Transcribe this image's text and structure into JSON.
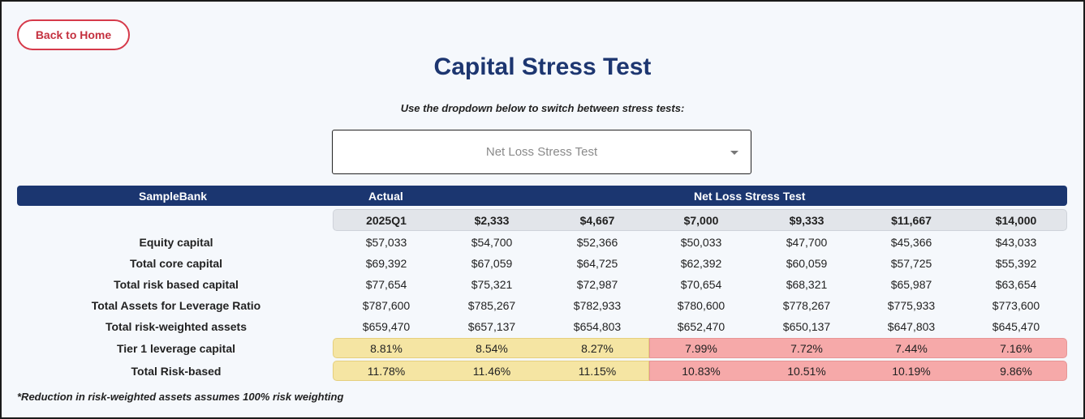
{
  "back_button": "Back to Home",
  "title": "Capital Stress Test",
  "instruction": "Use the dropdown below to switch between stress tests:",
  "dropdown": {
    "selected": "Net Loss Stress Test"
  },
  "table": {
    "bank_header": "SampleBank",
    "actual_header": "Actual",
    "scenario_header": "Net Loss Stress Test",
    "columns": [
      "2025Q1",
      "$2,333",
      "$4,667",
      "$7,000",
      "$9,333",
      "$11,667",
      "$14,000"
    ],
    "rows": [
      {
        "label": "Equity capital",
        "values": [
          "$57,033",
          "$54,700",
          "$52,366",
          "$50,033",
          "$47,700",
          "$45,366",
          "$43,033"
        ]
      },
      {
        "label": "Total core capital",
        "values": [
          "$69,392",
          "$67,059",
          "$64,725",
          "$62,392",
          "$60,059",
          "$57,725",
          "$55,392"
        ]
      },
      {
        "label": "Total risk based capital",
        "values": [
          "$77,654",
          "$75,321",
          "$72,987",
          "$70,654",
          "$68,321",
          "$65,987",
          "$63,654"
        ]
      },
      {
        "label": "Total Assets for Leverage Ratio",
        "values": [
          "$787,600",
          "$785,267",
          "$782,933",
          "$780,600",
          "$778,267",
          "$775,933",
          "$773,600"
        ]
      },
      {
        "label": "Total risk-weighted assets",
        "values": [
          "$659,470",
          "$657,137",
          "$654,803",
          "$652,470",
          "$650,137",
          "$647,803",
          "$645,470"
        ]
      }
    ],
    "ratio_rows": [
      {
        "label": "Tier 1 leverage capital",
        "values": [
          "8.81%",
          "8.54%",
          "8.27%",
          "7.99%",
          "7.72%",
          "7.44%",
          "7.16%"
        ]
      },
      {
        "label": "Total Risk-based",
        "values": [
          "11.78%",
          "11.46%",
          "11.15%",
          "10.83%",
          "10.51%",
          "10.19%",
          "9.86%"
        ]
      }
    ]
  },
  "footnote": "*Reduction in risk-weighted assets assumes 100% risk weighting",
  "colors": {
    "navy": "#1b3670",
    "accent_red": "#d63a4a",
    "ok_yellow": "#f5e5a3",
    "warn_red": "#f6a9a9"
  }
}
